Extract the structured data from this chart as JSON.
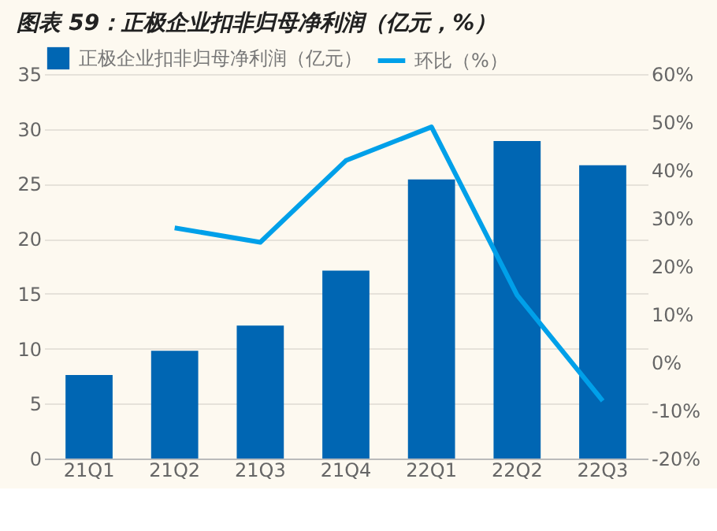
{
  "chart_data": {
    "type": "bar",
    "title": "图表 59：正极企业扣非归母净利润（亿元，%）",
    "categories": [
      "21Q1",
      "21Q2",
      "21Q3",
      "21Q4",
      "22Q1",
      "22Q2",
      "22Q3"
    ],
    "series": [
      {
        "name": "正极企业扣非归母净利润（亿元）",
        "color": "#0066b3",
        "values": [
          7.6,
          9.8,
          12.1,
          17.1,
          25.4,
          28.9,
          26.7
        ]
      },
      {
        "name": "环比（%）",
        "type": "line",
        "axis": "y2",
        "color": "#00a0e9",
        "values": [
          null,
          28,
          25,
          42,
          49,
          14,
          -8
        ]
      }
    ],
    "ylim": [
      0,
      35
    ],
    "yticks": [
      0,
      5,
      10,
      15,
      20,
      25,
      30,
      35
    ],
    "y2lim": [
      -20,
      60
    ],
    "y2ticks": [
      {
        "value": -20,
        "label": "-20%"
      },
      {
        "value": -10,
        "label": "-10%"
      },
      {
        "value": 0,
        "label": "0%"
      },
      {
        "value": 10,
        "label": "10%"
      },
      {
        "value": 20,
        "label": "20%"
      },
      {
        "value": 30,
        "label": "30%"
      },
      {
        "value": 40,
        "label": "40%"
      },
      {
        "value": 50,
        "label": "50%"
      },
      {
        "value": 60,
        "label": "60%"
      }
    ],
    "grid": "y",
    "legend": "top"
  }
}
